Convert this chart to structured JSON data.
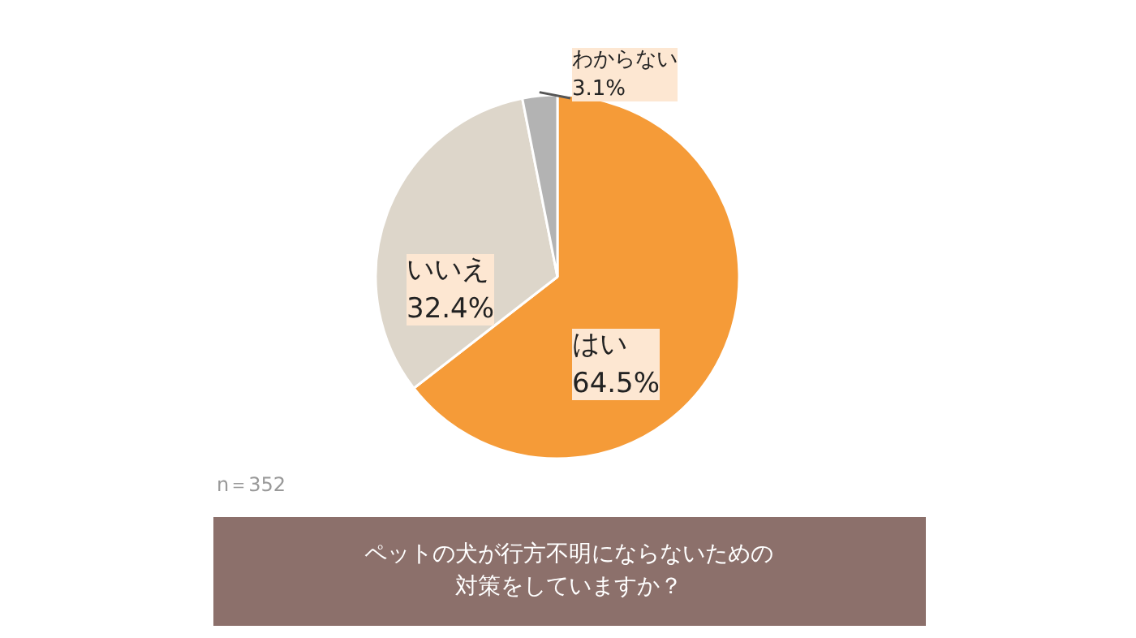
{
  "chart_data": {
    "type": "pie",
    "title": "ペットの犬が行方不明にならないための対策をしていますか？",
    "categories": [
      "はい",
      "いいえ",
      "わからない"
    ],
    "values": [
      64.5,
      32.4,
      3.1
    ],
    "colors": [
      "#f59b38",
      "#ddd6ca",
      "#b3b3b3"
    ],
    "value_labels": [
      "64.5%",
      "32.4%",
      "3.1%"
    ],
    "annotations": [
      "n＝352"
    ]
  }
}
